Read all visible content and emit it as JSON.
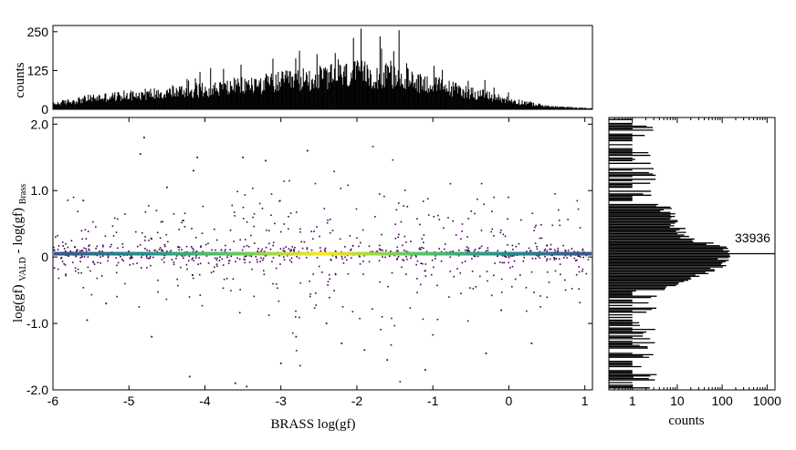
{
  "chart_data": [
    {
      "type": "bar",
      "panel": "top-histogram",
      "ylabel": "counts",
      "yticks": [
        "0",
        "125",
        "250"
      ],
      "ylim": [
        0,
        270
      ],
      "xlim": [
        -6,
        1.1
      ],
      "bin_width": 0.01,
      "profile": {
        "x": [
          -6.0,
          -5.5,
          -5.0,
          -4.0,
          -3.0,
          -2.0,
          -1.5,
          -1.0,
          -0.5,
          0.0,
          0.5,
          1.1
        ],
        "y": [
          18,
          38,
          48,
          68,
          95,
          122,
          112,
          85,
          58,
          32,
          10,
          3
        ]
      },
      "peak_values": [
        {
          "x": -1.95,
          "y": 260
        },
        {
          "x": -1.45,
          "y": 255
        },
        {
          "x": -2.05,
          "y": 230
        },
        {
          "x": -1.7,
          "y": 235
        }
      ]
    },
    {
      "type": "scatter",
      "panel": "main",
      "xlabel": "BRASS log(gf)",
      "ylabel_main": "log(gf)",
      "ylabel_sub1": "VALD",
      "ylabel_mid": " - log(gf)",
      "ylabel_sub2": "Brass",
      "xlim": [
        -6,
        1.1
      ],
      "ylim": [
        -2.0,
        2.1
      ],
      "xticks": [
        "-6",
        "-5",
        "-4",
        "-3",
        "-2",
        "-1",
        "0",
        "1"
      ],
      "yticks": [
        "-2.0",
        "-1.0",
        "0",
        "1.0",
        "2.0"
      ],
      "dense_line_y": 0.05,
      "dense_line_colors": [
        "#3b528b",
        "#21918c",
        "#5ec962",
        "#fde725",
        "#5ec962",
        "#21918c",
        "#3b528b"
      ],
      "point_color": "#440154",
      "outliers": [
        [
          -4.8,
          1.8
        ],
        [
          -4.85,
          1.55
        ],
        [
          -4.1,
          1.5
        ],
        [
          -2.65,
          1.6
        ],
        [
          -3.2,
          1.45
        ],
        [
          -3.5,
          1.5
        ],
        [
          -4.15,
          1.3
        ],
        [
          -5.6,
          0.85
        ],
        [
          -4.5,
          1.05
        ],
        [
          -1.9,
          -1.4
        ],
        [
          -2.4,
          -1.0
        ],
        [
          -3.6,
          -1.9
        ],
        [
          -4.2,
          -1.8
        ],
        [
          -3.45,
          -1.95
        ],
        [
          -1.1,
          -1.7
        ],
        [
          -0.3,
          -1.45
        ],
        [
          0.3,
          -1.3
        ],
        [
          -2.8,
          -1.2
        ],
        [
          -4.7,
          -1.2
        ],
        [
          -2.2,
          -1.3
        ],
        [
          -5.3,
          -0.7
        ],
        [
          -5.55,
          -0.95
        ],
        [
          -3.0,
          -1.6
        ],
        [
          -1.6,
          -1.55
        ],
        [
          -0.1,
          -0.8
        ]
      ],
      "scatter_spread": 0.45,
      "scatter_count": 950
    },
    {
      "type": "bar",
      "panel": "right-histogram",
      "orientation": "horizontal",
      "xlabel": "counts",
      "xscale": "log",
      "xlim": [
        0.3,
        1500
      ],
      "xticks": [
        "1",
        "10",
        "100",
        "1000"
      ],
      "ylim": [
        -2.0,
        2.1
      ],
      "peak_label": "33936",
      "peak_value": 33936,
      "peak_y": 0.05,
      "shoulder": {
        "y": [
          -0.5,
          -0.3,
          -0.15,
          0.0,
          0.1,
          0.25,
          0.5,
          0.8
        ],
        "counts": [
          4,
          20,
          90,
          130,
          150,
          20,
          9,
          5
        ]
      },
      "tail_count": 1
    }
  ]
}
